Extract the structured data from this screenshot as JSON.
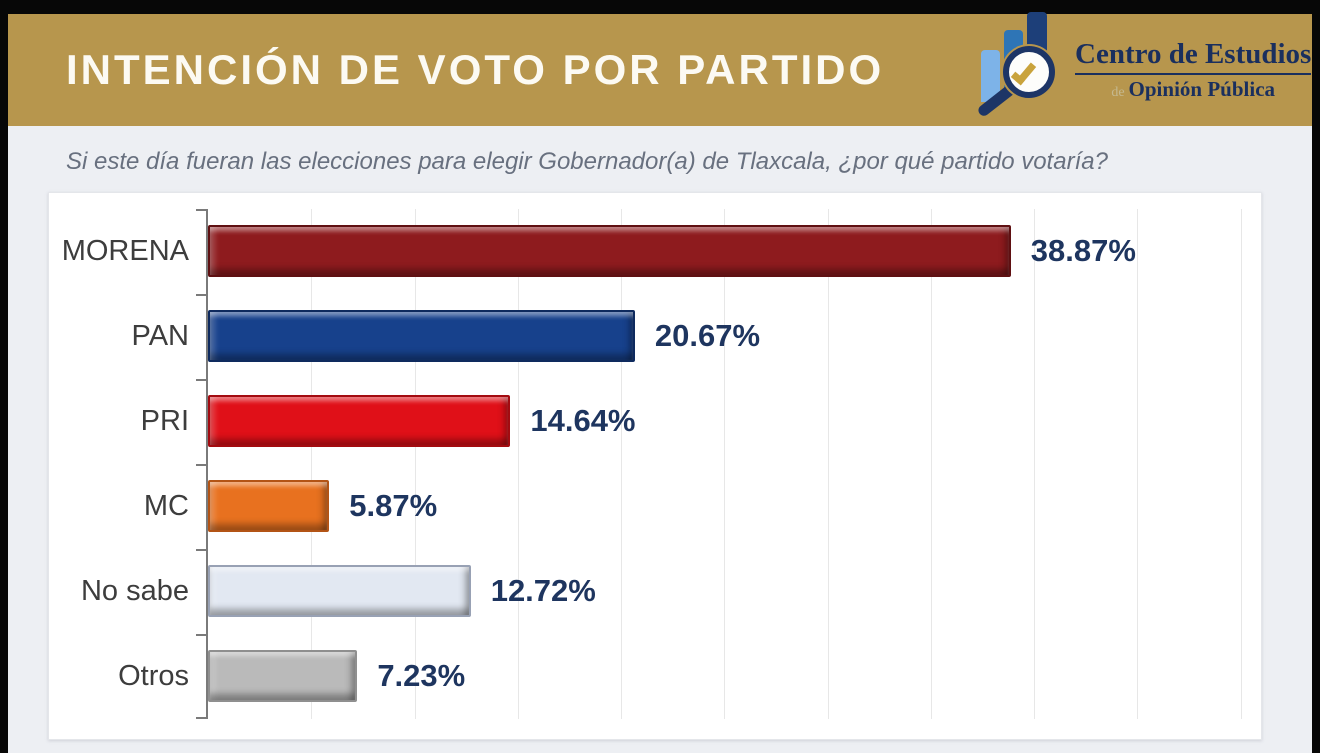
{
  "header": {
    "title": "INTENCIÓN DE VOTO POR PARTIDO",
    "banner_color": "#b7964d",
    "logo": {
      "line1": "Centro de Estudios",
      "line2_prefix": "de",
      "line2": "Opinión Pública"
    }
  },
  "question": "Si este día fueran las elecciones para elegir Gobernador(a) de Tlaxcala, ¿por qué partido votaría?",
  "chart_data": {
    "type": "bar",
    "orientation": "horizontal",
    "title": "",
    "xlabel": "",
    "ylabel": "",
    "categories": [
      "MORENA",
      "PAN",
      "PRI",
      "MC",
      "No sabe",
      "Otros"
    ],
    "values": [
      38.87,
      20.67,
      14.64,
      5.87,
      12.72,
      7.23
    ],
    "value_labels": [
      "38.87%",
      "20.67%",
      "14.64%",
      "5.87%",
      "12.72%",
      "7.23%"
    ],
    "bar_fill_colors": [
      "#8e1b1e",
      "#17418c",
      "#e01018",
      "#e8711f",
      "#e2e8f2",
      "#bababa"
    ],
    "bar_border_colors": [
      "#5f1012",
      "#0e2a5e",
      "#a30b10",
      "#b35415",
      "#98a1b4",
      "#8f8f8f"
    ],
    "value_label_color": "#1e355f",
    "xlim": [
      0,
      50.5
    ],
    "grid": true,
    "grid_interval": 5,
    "legend": false
  }
}
